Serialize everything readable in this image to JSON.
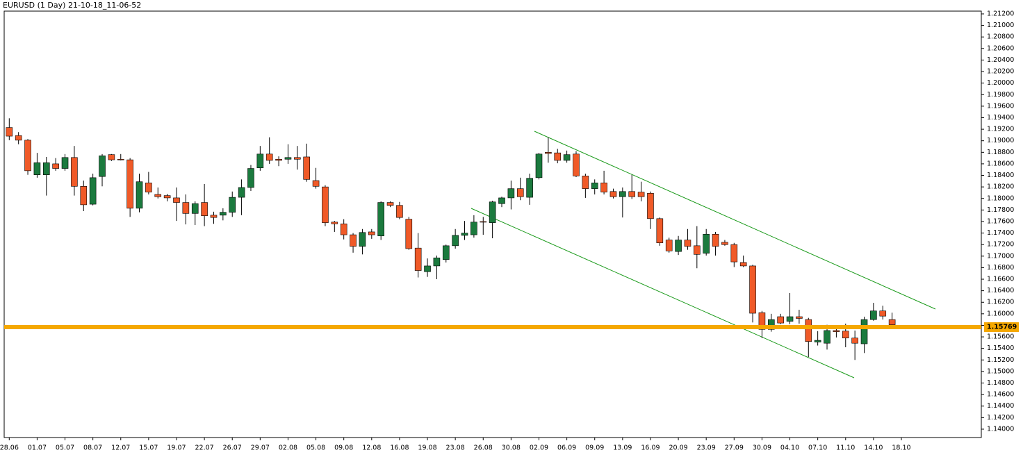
{
  "chart_data": {
    "type": "candlestick",
    "title": "EURUSD (1 Day) 21-10-18_11-06-52",
    "up_color": "#1b7a3e",
    "down_color": "#f05a28",
    "current_price": 1.15769,
    "current_price_color": "#f5a800",
    "categories": [
      "28.06",
      null,
      null,
      "01.07",
      null,
      null,
      "05.07",
      null,
      null,
      "08.07",
      null,
      null,
      "12.07",
      null,
      null,
      "15.07",
      null,
      null,
      "19.07",
      null,
      null,
      "22.07",
      null,
      null,
      "26.07",
      null,
      null,
      "29.07",
      null,
      null,
      "02.08",
      null,
      null,
      "05.08",
      null,
      null,
      "09.08",
      null,
      null,
      "12.08",
      null,
      null,
      "16.08",
      null,
      null,
      "19.08",
      null,
      null,
      "23.08",
      null,
      null,
      "26.08",
      null,
      null,
      "30.08",
      null,
      null,
      "02.09",
      null,
      null,
      "06.09",
      null,
      null,
      "09.09",
      null,
      null,
      "13.09",
      null,
      null,
      "16.09",
      null,
      null,
      "20.09",
      null,
      null,
      "23.09",
      null,
      null,
      "27.09",
      null,
      null,
      "30.09",
      null,
      null,
      "04.10",
      null,
      null,
      "07.10",
      null,
      null,
      "11.10",
      null,
      null,
      "14.10",
      null,
      null,
      "18.10"
    ],
    "open": [
      1.1923,
      1.1909,
      1.1901,
      1.1841,
      1.1841,
      1.186,
      1.1852,
      1.1871,
      1.1821,
      1.179,
      1.1838,
      1.1876,
      1.1868,
      1.1867,
      1.1783,
      1.1827,
      1.1807,
      1.1805,
      1.1801,
      1.1793,
      1.1774,
      1.1793,
      1.1771,
      1.1771,
      1.1776,
      1.1802,
      1.1819,
      1.1853,
      1.1877,
      1.1868,
      1.1868,
      1.1871,
      1.1872,
      1.1831,
      1.182,
      1.1759,
      1.1756,
      1.1737,
      1.1717,
      1.1742,
      1.1735,
      1.1793,
      1.1788,
      1.1764,
      1.1714,
      1.1673,
      1.1683,
      1.1694,
      1.1718,
      1.1736,
      1.1737,
      1.176,
      1.1758,
      1.1791,
      1.1801,
      1.1817,
      1.1802,
      1.1836,
      1.188,
      1.1879,
      1.1866,
      1.1877,
      1.1839,
      1.1817,
      1.1827,
      1.1812,
      1.1803,
      1.1812,
      1.1811,
      1.1809,
      1.1765,
      1.1728,
      1.1708,
      1.1728,
      1.1718,
      1.1705,
      1.1738,
      1.1724,
      1.172,
      1.1689,
      1.1683,
      1.1602,
      1.1573,
      1.1595,
      1.1587,
      1.1595,
      1.159,
      1.1551,
      1.1549,
      1.1571,
      1.157,
      1.1558,
      1.1548,
      1.159,
      1.1605,
      1.159,
      1.1579
    ],
    "high": [
      1.1939,
      1.1915,
      1.1903,
      1.1879,
      1.1872,
      1.187,
      1.1877,
      1.1891,
      1.1831,
      1.1843,
      1.1877,
      1.1877,
      1.1877,
      1.187,
      1.1843,
      1.1846,
      1.1819,
      1.1808,
      1.1819,
      1.1807,
      1.1795,
      1.1825,
      1.1777,
      1.1783,
      1.1812,
      1.1833,
      1.1858,
      1.1891,
      1.1906,
      1.1873,
      1.1894,
      1.1891,
      1.1895,
      1.1853,
      1.1823,
      1.1761,
      1.1764,
      1.174,
      1.1747,
      1.1747,
      1.1795,
      1.1795,
      1.1794,
      1.1768,
      1.174,
      1.1696,
      1.1701,
      1.172,
      1.1747,
      1.1761,
      1.1771,
      1.1768,
      1.1796,
      1.1803,
      1.1831,
      1.1836,
      1.1843,
      1.1879,
      1.1906,
      1.1886,
      1.1883,
      1.1882,
      1.1843,
      1.1833,
      1.1848,
      1.1817,
      1.1819,
      1.1841,
      1.1829,
      1.1812,
      1.1767,
      1.1732,
      1.1735,
      1.1747,
      1.1752,
      1.1747,
      1.1742,
      1.1728,
      1.1723,
      1.1701,
      1.1685,
      1.1605,
      1.16,
      1.16,
      1.1636,
      1.1607,
      1.1593,
      1.157,
      1.1581,
      1.1578,
      1.1583,
      1.1571,
      1.1595,
      1.1619,
      1.1614,
      1.1602,
      1.158
    ],
    "low": [
      1.1901,
      1.1894,
      1.1841,
      1.1836,
      1.1805,
      1.1848,
      1.1848,
      1.1805,
      1.1778,
      1.1788,
      1.1821,
      1.1865,
      1.1866,
      1.1768,
      1.1776,
      1.1807,
      1.18,
      1.1795,
      1.1761,
      1.1755,
      1.1754,
      1.1752,
      1.1756,
      1.1762,
      1.1768,
      1.1771,
      1.1813,
      1.1848,
      1.186,
      1.1856,
      1.186,
      1.185,
      1.1829,
      1.1817,
      1.1752,
      1.1742,
      1.1729,
      1.1706,
      1.1703,
      1.173,
      1.1728,
      1.1785,
      1.1764,
      1.1711,
      1.1663,
      1.1664,
      1.166,
      1.1689,
      1.1713,
      1.1728,
      1.1732,
      1.1737,
      1.1731,
      1.1785,
      1.1781,
      1.1797,
      1.1789,
      1.1833,
      1.1862,
      1.1861,
      1.1862,
      1.1837,
      1.1801,
      1.1807,
      1.1807,
      1.18,
      1.1767,
      1.1799,
      1.1795,
      1.1747,
      1.1718,
      1.1706,
      1.1702,
      1.1711,
      1.1679,
      1.1701,
      1.1701,
      1.1718,
      1.1681,
      1.1681,
      1.1585,
      1.1558,
      1.1569,
      1.1582,
      1.1582,
      1.1583,
      1.1525,
      1.1545,
      1.1538,
      1.1559,
      1.1542,
      1.152,
      1.1532,
      1.1588,
      1.159,
      1.1578,
      1.1575
    ],
    "close": [
      1.1908,
      1.1901,
      1.1848,
      1.1862,
      1.1862,
      1.1852,
      1.1871,
      1.1821,
      1.1789,
      1.1836,
      1.1874,
      1.1867,
      1.1867,
      1.1783,
      1.1829,
      1.1811,
      1.1803,
      1.1801,
      1.1793,
      1.1774,
      1.1791,
      1.177,
      1.1767,
      1.1776,
      1.1802,
      1.1819,
      1.1852,
      1.1877,
      1.1866,
      1.1866,
      1.1871,
      1.1868,
      1.1833,
      1.1821,
      1.1758,
      1.1756,
      1.1737,
      1.1717,
      1.1741,
      1.1737,
      1.1793,
      1.1788,
      1.1767,
      1.1713,
      1.1675,
      1.1683,
      1.1697,
      1.1718,
      1.1736,
      1.174,
      1.1759,
      1.1759,
      1.1794,
      1.1801,
      1.1817,
      1.1803,
      1.1835,
      1.1877,
      1.1878,
      1.1866,
      1.1876,
      1.1839,
      1.1817,
      1.1827,
      1.1811,
      1.1803,
      1.1812,
      1.1803,
      1.1803,
      1.1765,
      1.1723,
      1.1709,
      1.1728,
      1.1717,
      1.1703,
      1.1738,
      1.1717,
      1.172,
      1.169,
      1.1683,
      1.1601,
      1.1573,
      1.159,
      1.1584,
      1.1595,
      1.1592,
      1.1552,
      1.1554,
      1.1571,
      1.1569,
      1.1558,
      1.1549,
      1.159,
      1.1605,
      1.1596,
      1.1581,
      1.15769
    ],
    "ylim": [
      1.13855,
      1.21248
    ],
    "yticks": [
      {
        "value": 1.14,
        "label": "1.14000"
      },
      {
        "value": 1.142,
        "label": "1.14200"
      },
      {
        "value": 1.144,
        "label": "1.14400"
      },
      {
        "value": 1.146,
        "label": "1.14600"
      },
      {
        "value": 1.148,
        "label": "1.14800"
      },
      {
        "value": 1.15,
        "label": "1.15000"
      },
      {
        "value": 1.152,
        "label": "1.15200"
      },
      {
        "value": 1.154,
        "label": "1.15400"
      },
      {
        "value": 1.156,
        "label": "1.15600"
      },
      {
        "value": 1.158,
        "label": "1.15800"
      },
      {
        "value": 1.16,
        "label": "1.16000"
      },
      {
        "value": 1.162,
        "label": "1.16200"
      },
      {
        "value": 1.164,
        "label": "1.16400"
      },
      {
        "value": 1.166,
        "label": "1.16600"
      },
      {
        "value": 1.168,
        "label": "1.16800"
      },
      {
        "value": 1.17,
        "label": "1.17000"
      },
      {
        "value": 1.172,
        "label": "1.17200"
      },
      {
        "value": 1.174,
        "label": "1.17400"
      },
      {
        "value": 1.176,
        "label": "1.17600"
      },
      {
        "value": 1.178,
        "label": "1.17800"
      },
      {
        "value": 1.18,
        "label": "1.18000"
      },
      {
        "value": 1.182,
        "label": "1.18200"
      },
      {
        "value": 1.184,
        "label": "1.18400"
      },
      {
        "value": 1.186,
        "label": "1.18600"
      },
      {
        "value": 1.188,
        "label": "1.18800"
      },
      {
        "value": 1.19,
        "label": "1.19000"
      },
      {
        "value": 1.192,
        "label": "1.19200"
      },
      {
        "value": 1.194,
        "label": "1.19400"
      },
      {
        "value": 1.196,
        "label": "1.19600"
      },
      {
        "value": 1.198,
        "label": "1.19800"
      },
      {
        "value": 1.2,
        "label": "1.20000"
      },
      {
        "value": 1.202,
        "label": "1.20200"
      },
      {
        "value": 1.204,
        "label": "1.20400"
      },
      {
        "value": 1.206,
        "label": "1.20600"
      },
      {
        "value": 1.208,
        "label": "1.20800"
      },
      {
        "value": 1.21,
        "label": "1.21000"
      },
      {
        "value": 1.212,
        "label": "1.21200"
      }
    ]
  }
}
